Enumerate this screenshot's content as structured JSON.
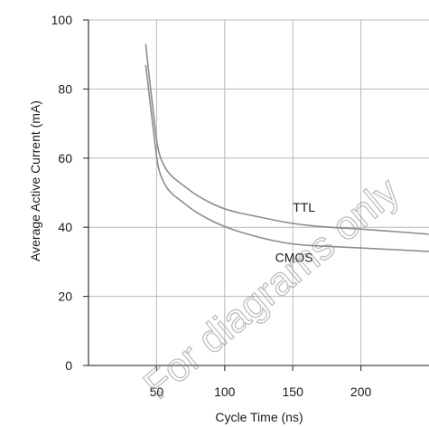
{
  "chart_data": {
    "type": "line",
    "xlabel": "Cycle Time (ns)",
    "ylabel": "Average Active Current (mA)",
    "xlim": [
      0,
      250
    ],
    "ylim": [
      0,
      100
    ],
    "x_ticks": [
      "50",
      "100",
      "150",
      "200"
    ],
    "x_tick_values": [
      50,
      100,
      150,
      200
    ],
    "y_ticks": [
      "0",
      "20",
      "40",
      "60",
      "80",
      "100"
    ],
    "y_tick_values": [
      0,
      20,
      40,
      60,
      80,
      100
    ],
    "grid": true,
    "series": [
      {
        "name": "TTL",
        "color": "#8c8c8c",
        "x": [
          42,
          45,
          48,
          50,
          52,
          55,
          60,
          70,
          80,
          100,
          125,
          150,
          175,
          200,
          250
        ],
        "y": [
          93,
          82,
          72,
          65,
          61,
          58,
          55,
          52,
          49,
          45,
          43,
          41,
          40,
          39.5,
          38
        ]
      },
      {
        "name": "CMOS",
        "color": "#8c8c8c",
        "x": [
          42,
          45,
          48,
          50,
          52,
          55,
          60,
          70,
          80,
          100,
          125,
          150,
          175,
          200,
          250
        ],
        "y": [
          87,
          77,
          67,
          60,
          56,
          53,
          50,
          47,
          44,
          40,
          37,
          35,
          34.5,
          34,
          33
        ]
      }
    ]
  },
  "watermark": {
    "text": "For diagrams only"
  }
}
